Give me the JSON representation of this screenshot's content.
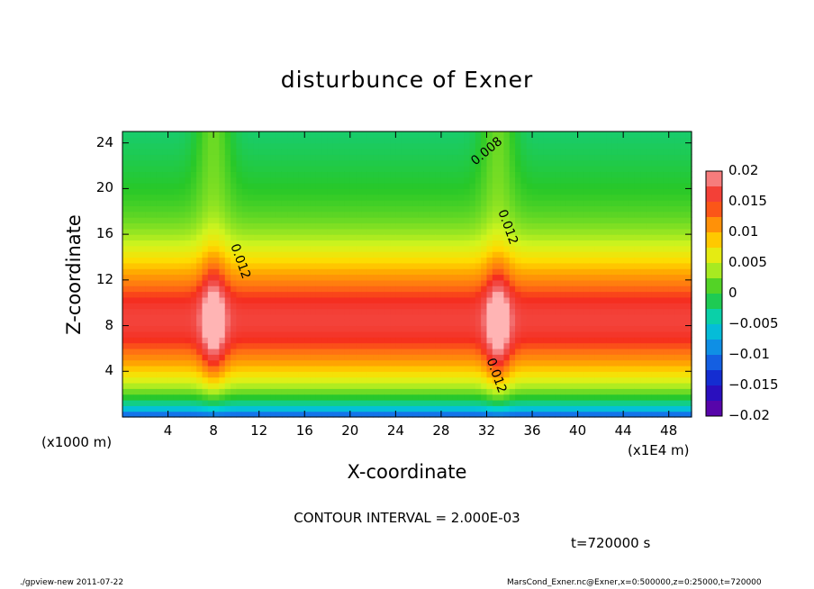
{
  "chart_data": {
    "type": "heatmap",
    "title": "disturbunce of Exner",
    "xlabel": "X-coordinate",
    "ylabel": "Z-coordinate",
    "x_unit_label": "(x1E4 m)",
    "y_unit_label": "(x1000 m)",
    "x_ticks": [
      "4",
      "8",
      "12",
      "16",
      "20",
      "24",
      "28",
      "32",
      "36",
      "40",
      "44",
      "48"
    ],
    "y_ticks": [
      "4",
      "8",
      "12",
      "16",
      "20",
      "24"
    ],
    "xlim": [
      0,
      50
    ],
    "ylim": [
      0,
      25
    ],
    "colorbar": {
      "ticks": [
        "0.02",
        "0.015",
        "0.01",
        "0.005",
        "0",
        "−0.005",
        "−0.01",
        "−0.015",
        "−0.02"
      ],
      "range": [
        -0.02,
        0.02
      ]
    },
    "contour_labels": [
      {
        "text": "0.008",
        "x": 31,
        "y": 22
      },
      {
        "text": "0.012",
        "x": 33,
        "y": 18
      },
      {
        "text": "0.012",
        "x": 9.5,
        "y": 15
      },
      {
        "text": "0.012",
        "x": 32,
        "y": 5
      }
    ],
    "peaks": [
      {
        "x": 8,
        "z": 8.5,
        "value": 0.02
      },
      {
        "x": 33,
        "z": 8,
        "value": 0.02
      }
    ]
  },
  "contour_interval": "CONTOUR INTERVAL = 2.000E-03",
  "time_label": "t=720000 s",
  "footer_left": "./gpview-new  2011-07-22",
  "footer_right": "MarsCond_Exner.nc@Exner,x=0:500000,z=0:25000,t=720000"
}
